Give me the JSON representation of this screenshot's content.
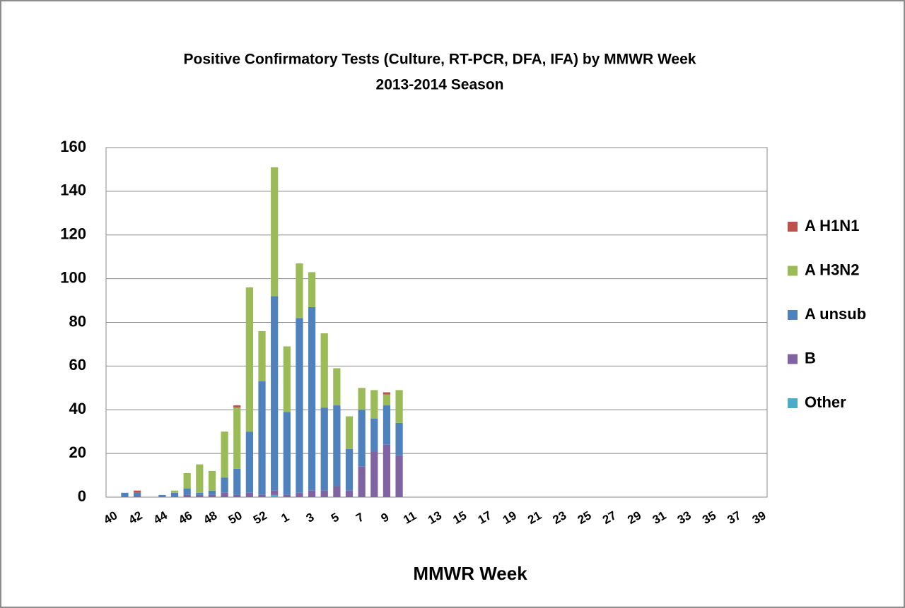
{
  "chart_data": {
    "type": "stacked_bar",
    "title": "Positive Confirmatory Tests (Culture, RT-PCR, DFA, IFA) by MMWR Week",
    "subtitle": "2013-2014 Season",
    "x_label": "MMWR Week",
    "categories": [
      "40",
      null,
      "42",
      null,
      "44",
      null,
      "46",
      null,
      "48",
      null,
      "50",
      null,
      "52",
      null,
      "1",
      null,
      "3",
      null,
      "5",
      null,
      "7",
      null,
      "9",
      null,
      "11",
      null,
      "13",
      null,
      "15",
      null,
      "17",
      null,
      "19",
      null,
      "21",
      null,
      "23",
      null,
      "25",
      null,
      "27",
      null,
      "29",
      null,
      "31",
      null,
      "33",
      null,
      "35",
      null,
      "37",
      null,
      "39"
    ],
    "series": [
      {
        "name": "A H1N1",
        "color": "#c0504d",
        "values": [
          0,
          0,
          1,
          0,
          0,
          0,
          0,
          0,
          0,
          0,
          1,
          0,
          0,
          0,
          0,
          0,
          0,
          0,
          0,
          0,
          0,
          0,
          1,
          0,
          0,
          0,
          0,
          0,
          0,
          0,
          0,
          0,
          0,
          0,
          0,
          0,
          0,
          0,
          0,
          0,
          0,
          0,
          0,
          0,
          0,
          0,
          0,
          0,
          0,
          0,
          0,
          0,
          0
        ]
      },
      {
        "name": "A H3N2",
        "color": "#9bbb59",
        "values": [
          0,
          0,
          0,
          0,
          0,
          1,
          7,
          13,
          9,
          21,
          28,
          66,
          23,
          59,
          30,
          25,
          16,
          34,
          17,
          15,
          10,
          13,
          5,
          15,
          0,
          0,
          0,
          0,
          0,
          0,
          0,
          0,
          0,
          0,
          0,
          0,
          0,
          0,
          0,
          0,
          0,
          0,
          0,
          0,
          0,
          0,
          0,
          0,
          0,
          0,
          0,
          0,
          0
        ]
      },
      {
        "name": "A unsub",
        "color": "#4f81bd",
        "values": [
          0,
          2,
          2,
          0,
          1,
          2,
          3,
          1,
          2,
          7,
          12,
          28,
          52,
          89,
          38,
          80,
          84,
          38,
          37,
          19,
          26,
          15,
          18,
          15,
          0,
          0,
          0,
          0,
          0,
          0,
          0,
          0,
          0,
          0,
          0,
          0,
          0,
          0,
          0,
          0,
          0,
          0,
          0,
          0,
          0,
          0,
          0,
          0,
          0,
          0,
          0,
          0,
          0
        ]
      },
      {
        "name": "B",
        "color": "#8064a2",
        "values": [
          0,
          0,
          0,
          0,
          0,
          0,
          1,
          1,
          1,
          2,
          1,
          2,
          1,
          2,
          1,
          2,
          3,
          3,
          5,
          3,
          14,
          21,
          24,
          19,
          0,
          0,
          0,
          0,
          0,
          0,
          0,
          0,
          0,
          0,
          0,
          0,
          0,
          0,
          0,
          0,
          0,
          0,
          0,
          0,
          0,
          0,
          0,
          0,
          0,
          0,
          0,
          0,
          0
        ]
      },
      {
        "name": "Other",
        "color": "#4bacc6",
        "values": [
          0,
          0,
          0,
          0,
          0,
          0,
          0,
          0,
          0,
          0,
          0,
          0,
          0,
          1,
          0,
          0,
          0,
          0,
          0,
          0,
          0,
          0,
          0,
          0,
          0,
          0,
          0,
          0,
          0,
          0,
          0,
          0,
          0,
          0,
          0,
          0,
          0,
          0,
          0,
          0,
          0,
          0,
          0,
          0,
          0,
          0,
          0,
          0,
          0,
          0,
          0,
          0,
          0
        ]
      }
    ],
    "ylim": [
      0,
      160
    ],
    "yticks": [
      0,
      20,
      40,
      60,
      80,
      100,
      120,
      140,
      160
    ],
    "grid": true,
    "legend": "right"
  }
}
